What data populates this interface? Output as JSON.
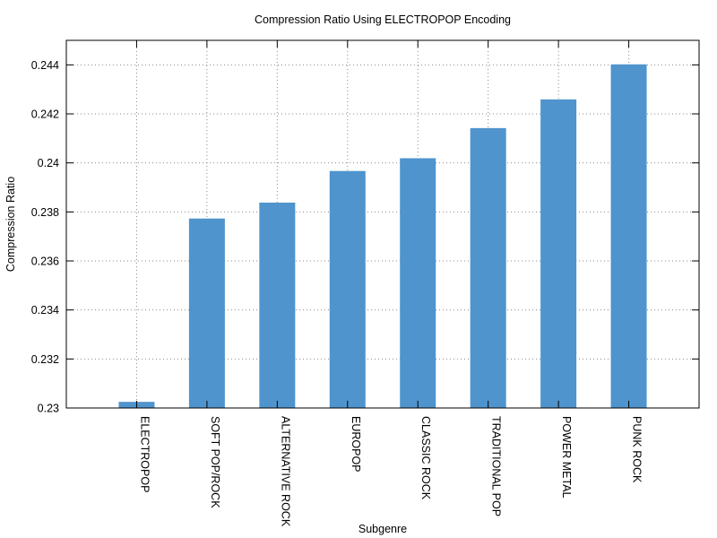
{
  "chart_data": {
    "type": "bar",
    "title": "Compression Ratio Using ELECTROPOP Encoding",
    "xlabel": "Subgenre",
    "ylabel": "Compression Ratio",
    "categories": [
      "ELECTROPOP",
      "SOFT POP/ROCK",
      "ALTERNATIVE ROCK",
      "EUROPOP",
      "CLASSIC ROCK",
      "TRADITIONAL POP",
      "POWER METAL",
      "PUNK ROCK"
    ],
    "values": [
      0.23025,
      0.23773,
      0.23838,
      0.23967,
      0.24019,
      0.24142,
      0.24259,
      0.24402
    ],
    "ylim": [
      0.23,
      0.245
    ],
    "yticks": [
      0.23,
      0.232,
      0.234,
      0.236,
      0.238,
      0.24,
      0.242,
      0.244
    ],
    "ytick_labels": [
      "0.23",
      "0.232",
      "0.234",
      "0.236",
      "0.238",
      "0.24",
      "0.242",
      "0.244"
    ],
    "grid": true,
    "bar_color": "#4f94cd",
    "legend": "none"
  }
}
